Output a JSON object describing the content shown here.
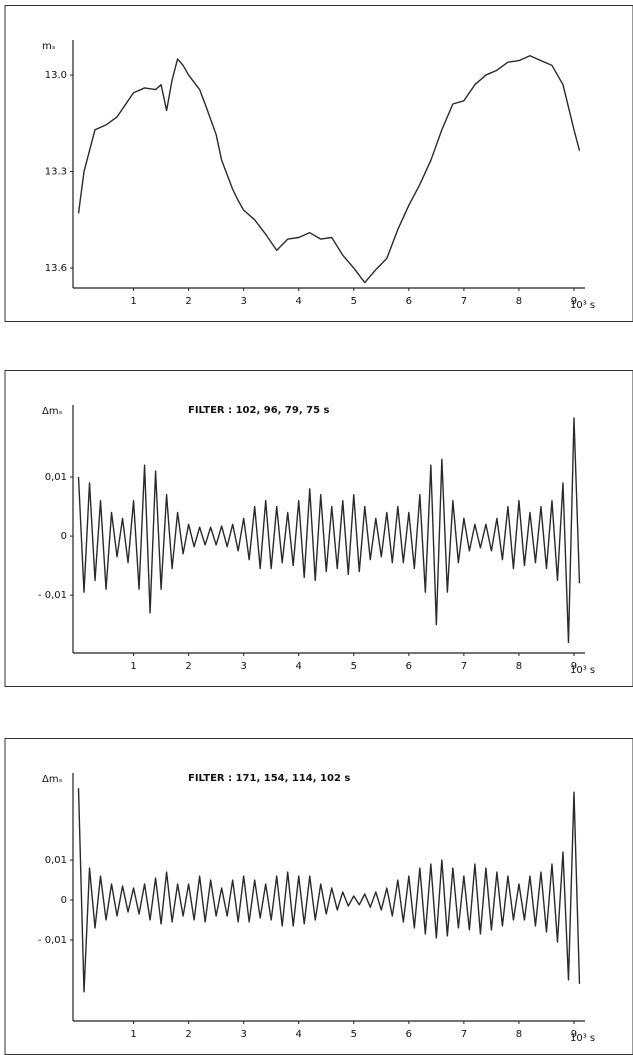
{
  "chart_data": [
    {
      "type": "line",
      "y_label": "mₛ",
      "x_label": "10³ s",
      "color": "#2a2a2a",
      "xlim": [
        -0.1,
        9.2
      ],
      "xticks": [
        1,
        2,
        3,
        4,
        5,
        6,
        7,
        8,
        9
      ],
      "ylim": [
        13.662,
        12.891
      ],
      "yticks": [
        {
          "value": 13,
          "label": "13.0"
        },
        13.3,
        13.6
      ],
      "x": [
        0,
        0.1,
        0.3,
        0.5,
        0.7,
        0.9,
        1.0,
        1.2,
        1.4,
        1.5,
        1.6,
        1.7,
        1.8,
        1.9,
        2.0,
        2.2,
        2.3,
        2.5,
        2.6,
        2.8,
        2.9,
        3.0,
        3.2,
        3.4,
        3.6,
        3.8,
        4.0,
        4.2,
        4.4,
        4.6,
        4.8,
        5.0,
        5.2,
        5.4,
        5.6,
        5.8,
        6.0,
        6.2,
        6.4,
        6.6,
        6.8,
        7.0,
        7.2,
        7.4,
        7.6,
        7.8,
        8.0,
        8.2,
        8.4,
        8.6,
        8.8,
        9.0,
        9.1
      ],
      "values": [
        13.43,
        13.3,
        13.17,
        13.155,
        13.13,
        13.08,
        13.055,
        13.04,
        13.045,
        13.03,
        13.11,
        13.015,
        12.95,
        12.97,
        13.0,
        13.045,
        13.09,
        13.185,
        13.265,
        13.355,
        13.39,
        13.42,
        13.45,
        13.495,
        13.545,
        13.51,
        13.505,
        13.49,
        13.51,
        13.505,
        13.56,
        13.6,
        13.645,
        13.605,
        13.57,
        13.48,
        13.405,
        13.34,
        13.265,
        13.17,
        13.09,
        13.08,
        13.03,
        13.0,
        12.985,
        12.96,
        12.955,
        12.94,
        12.955,
        12.97,
        13.03,
        13.17,
        13.235
      ]
    },
    {
      "type": "line",
      "title": "FILTER : 102, 96, 79, 75 s",
      "y_label": "Δmₛ",
      "x_label": "10³ s",
      "color": "#2a2a2a",
      "xlim": [
        -0.1,
        9.2
      ],
      "xticks": [
        1,
        2,
        3,
        4,
        5,
        6,
        7,
        8,
        9
      ],
      "ylim": [
        -0.0198,
        0.0222
      ],
      "yticks": [
        {
          "value": 0.01,
          "label": "0,01"
        },
        0,
        {
          "value": -0.01,
          "label": "- 0,01"
        }
      ],
      "x": [
        0,
        0.1,
        0.2,
        0.3,
        0.4,
        0.5,
        0.6,
        0.7,
        0.8,
        0.9,
        1.0,
        1.1,
        1.2,
        1.3,
        1.4,
        1.5,
        1.6,
        1.7,
        1.8,
        1.9,
        2.0,
        2.1,
        2.2,
        2.3,
        2.4,
        2.5,
        2.6,
        2.7,
        2.8,
        2.9,
        3.0,
        3.1,
        3.2,
        3.3,
        3.4,
        3.5,
        3.6,
        3.7,
        3.8,
        3.9,
        4.0,
        4.1,
        4.2,
        4.3,
        4.4,
        4.5,
        4.6,
        4.7,
        4.8,
        4.9,
        5.0,
        5.1,
        5.2,
        5.3,
        5.4,
        5.5,
        5.6,
        5.7,
        5.8,
        5.9,
        6.0,
        6.1,
        6.2,
        6.3,
        6.4,
        6.5,
        6.6,
        6.7,
        6.8,
        6.9,
        7.0,
        7.1,
        7.2,
        7.3,
        7.4,
        7.5,
        7.6,
        7.7,
        7.8,
        7.9,
        8.0,
        8.1,
        8.2,
        8.3,
        8.4,
        8.5,
        8.6,
        8.7,
        8.8,
        8.9,
        9.0,
        9.1
      ],
      "values": [
        0.01,
        -0.0095,
        0.009,
        -0.0075,
        0.006,
        -0.009,
        0.004,
        -0.0035,
        0.003,
        -0.0045,
        0.006,
        -0.009,
        0.012,
        -0.013,
        0.011,
        -0.009,
        0.007,
        -0.0055,
        0.004,
        -0.003,
        0.002,
        -0.0018,
        0.0015,
        -0.0015,
        0.0015,
        -0.0015,
        0.0017,
        -0.0018,
        0.002,
        -0.0025,
        0.003,
        -0.004,
        0.005,
        -0.0055,
        0.006,
        -0.0055,
        0.005,
        -0.0045,
        0.004,
        -0.005,
        0.006,
        -0.007,
        0.008,
        -0.0075,
        0.007,
        -0.006,
        0.005,
        -0.0055,
        0.006,
        -0.0065,
        0.007,
        -0.006,
        0.005,
        -0.004,
        0.003,
        -0.0035,
        0.004,
        -0.0045,
        0.005,
        -0.0045,
        0.004,
        -0.0055,
        0.007,
        -0.0095,
        0.012,
        -0.015,
        0.013,
        -0.0095,
        0.006,
        -0.0045,
        0.003,
        -0.0025,
        0.002,
        -0.002,
        0.002,
        -0.0025,
        0.003,
        -0.004,
        0.005,
        -0.0055,
        0.006,
        -0.005,
        0.004,
        -0.0045,
        0.005,
        -0.0055,
        0.006,
        -0.0075,
        0.009,
        -0.018,
        0.02,
        -0.008
      ]
    },
    {
      "type": "line",
      "title": "FILTER : 171, 154, 114, 102 s",
      "y_label": "Δmₛ",
      "x_label": "10³ s",
      "color": "#2a2a2a",
      "xlim": [
        -0.1,
        9.2
      ],
      "xticks": [
        1,
        2,
        3,
        4,
        5,
        6,
        7,
        8,
        9
      ],
      "ylim": [
        -0.0303,
        0.0318
      ],
      "yticks": [
        {
          "value": 0.01,
          "label": "0,01"
        },
        0,
        {
          "value": -0.01,
          "label": "- 0,01"
        }
      ],
      "x": [
        0,
        0.1,
        0.2,
        0.3,
        0.4,
        0.5,
        0.6,
        0.7,
        0.8,
        0.9,
        1.0,
        1.1,
        1.2,
        1.3,
        1.4,
        1.5,
        1.6,
        1.7,
        1.8,
        1.9,
        2.0,
        2.1,
        2.2,
        2.3,
        2.4,
        2.5,
        2.6,
        2.7,
        2.8,
        2.9,
        3.0,
        3.1,
        3.2,
        3.3,
        3.4,
        3.5,
        3.6,
        3.7,
        3.8,
        3.9,
        4.0,
        4.1,
        4.2,
        4.3,
        4.4,
        4.5,
        4.6,
        4.7,
        4.8,
        4.9,
        5.0,
        5.1,
        5.2,
        5.3,
        5.4,
        5.5,
        5.6,
        5.7,
        5.8,
        5.9,
        6.0,
        6.1,
        6.2,
        6.3,
        6.4,
        6.5,
        6.6,
        6.7,
        6.8,
        6.9,
        7.0,
        7.1,
        7.2,
        7.3,
        7.4,
        7.5,
        7.6,
        7.7,
        7.8,
        7.9,
        8.0,
        8.1,
        8.2,
        8.3,
        8.4,
        8.5,
        8.6,
        8.7,
        8.8,
        8.9,
        9.0,
        9.1
      ],
      "values": [
        0.028,
        -0.023,
        0.008,
        -0.007,
        0.006,
        -0.005,
        0.004,
        -0.004,
        0.0035,
        -0.003,
        0.003,
        -0.0035,
        0.004,
        -0.005,
        0.0055,
        -0.006,
        0.007,
        -0.0055,
        0.004,
        -0.004,
        0.004,
        -0.005,
        0.006,
        -0.0055,
        0.005,
        -0.004,
        0.003,
        -0.004,
        0.005,
        -0.0055,
        0.006,
        -0.0055,
        0.005,
        -0.0045,
        0.004,
        -0.005,
        0.006,
        -0.0065,
        0.007,
        -0.0065,
        0.006,
        -0.006,
        0.006,
        -0.005,
        0.004,
        -0.0035,
        0.003,
        -0.0025,
        0.002,
        -0.0015,
        0.001,
        -0.0012,
        0.0015,
        -0.0018,
        0.002,
        -0.0025,
        0.003,
        -0.004,
        0.005,
        -0.0055,
        0.006,
        -0.007,
        0.008,
        -0.0085,
        0.009,
        -0.0095,
        0.01,
        -0.009,
        0.008,
        -0.007,
        0.006,
        -0.0075,
        0.009,
        -0.0085,
        0.008,
        -0.0075,
        0.007,
        -0.0065,
        0.006,
        -0.005,
        0.004,
        -0.005,
        0.006,
        -0.0065,
        0.007,
        -0.008,
        0.009,
        -0.0105,
        0.012,
        -0.02,
        0.027,
        -0.021
      ]
    }
  ]
}
